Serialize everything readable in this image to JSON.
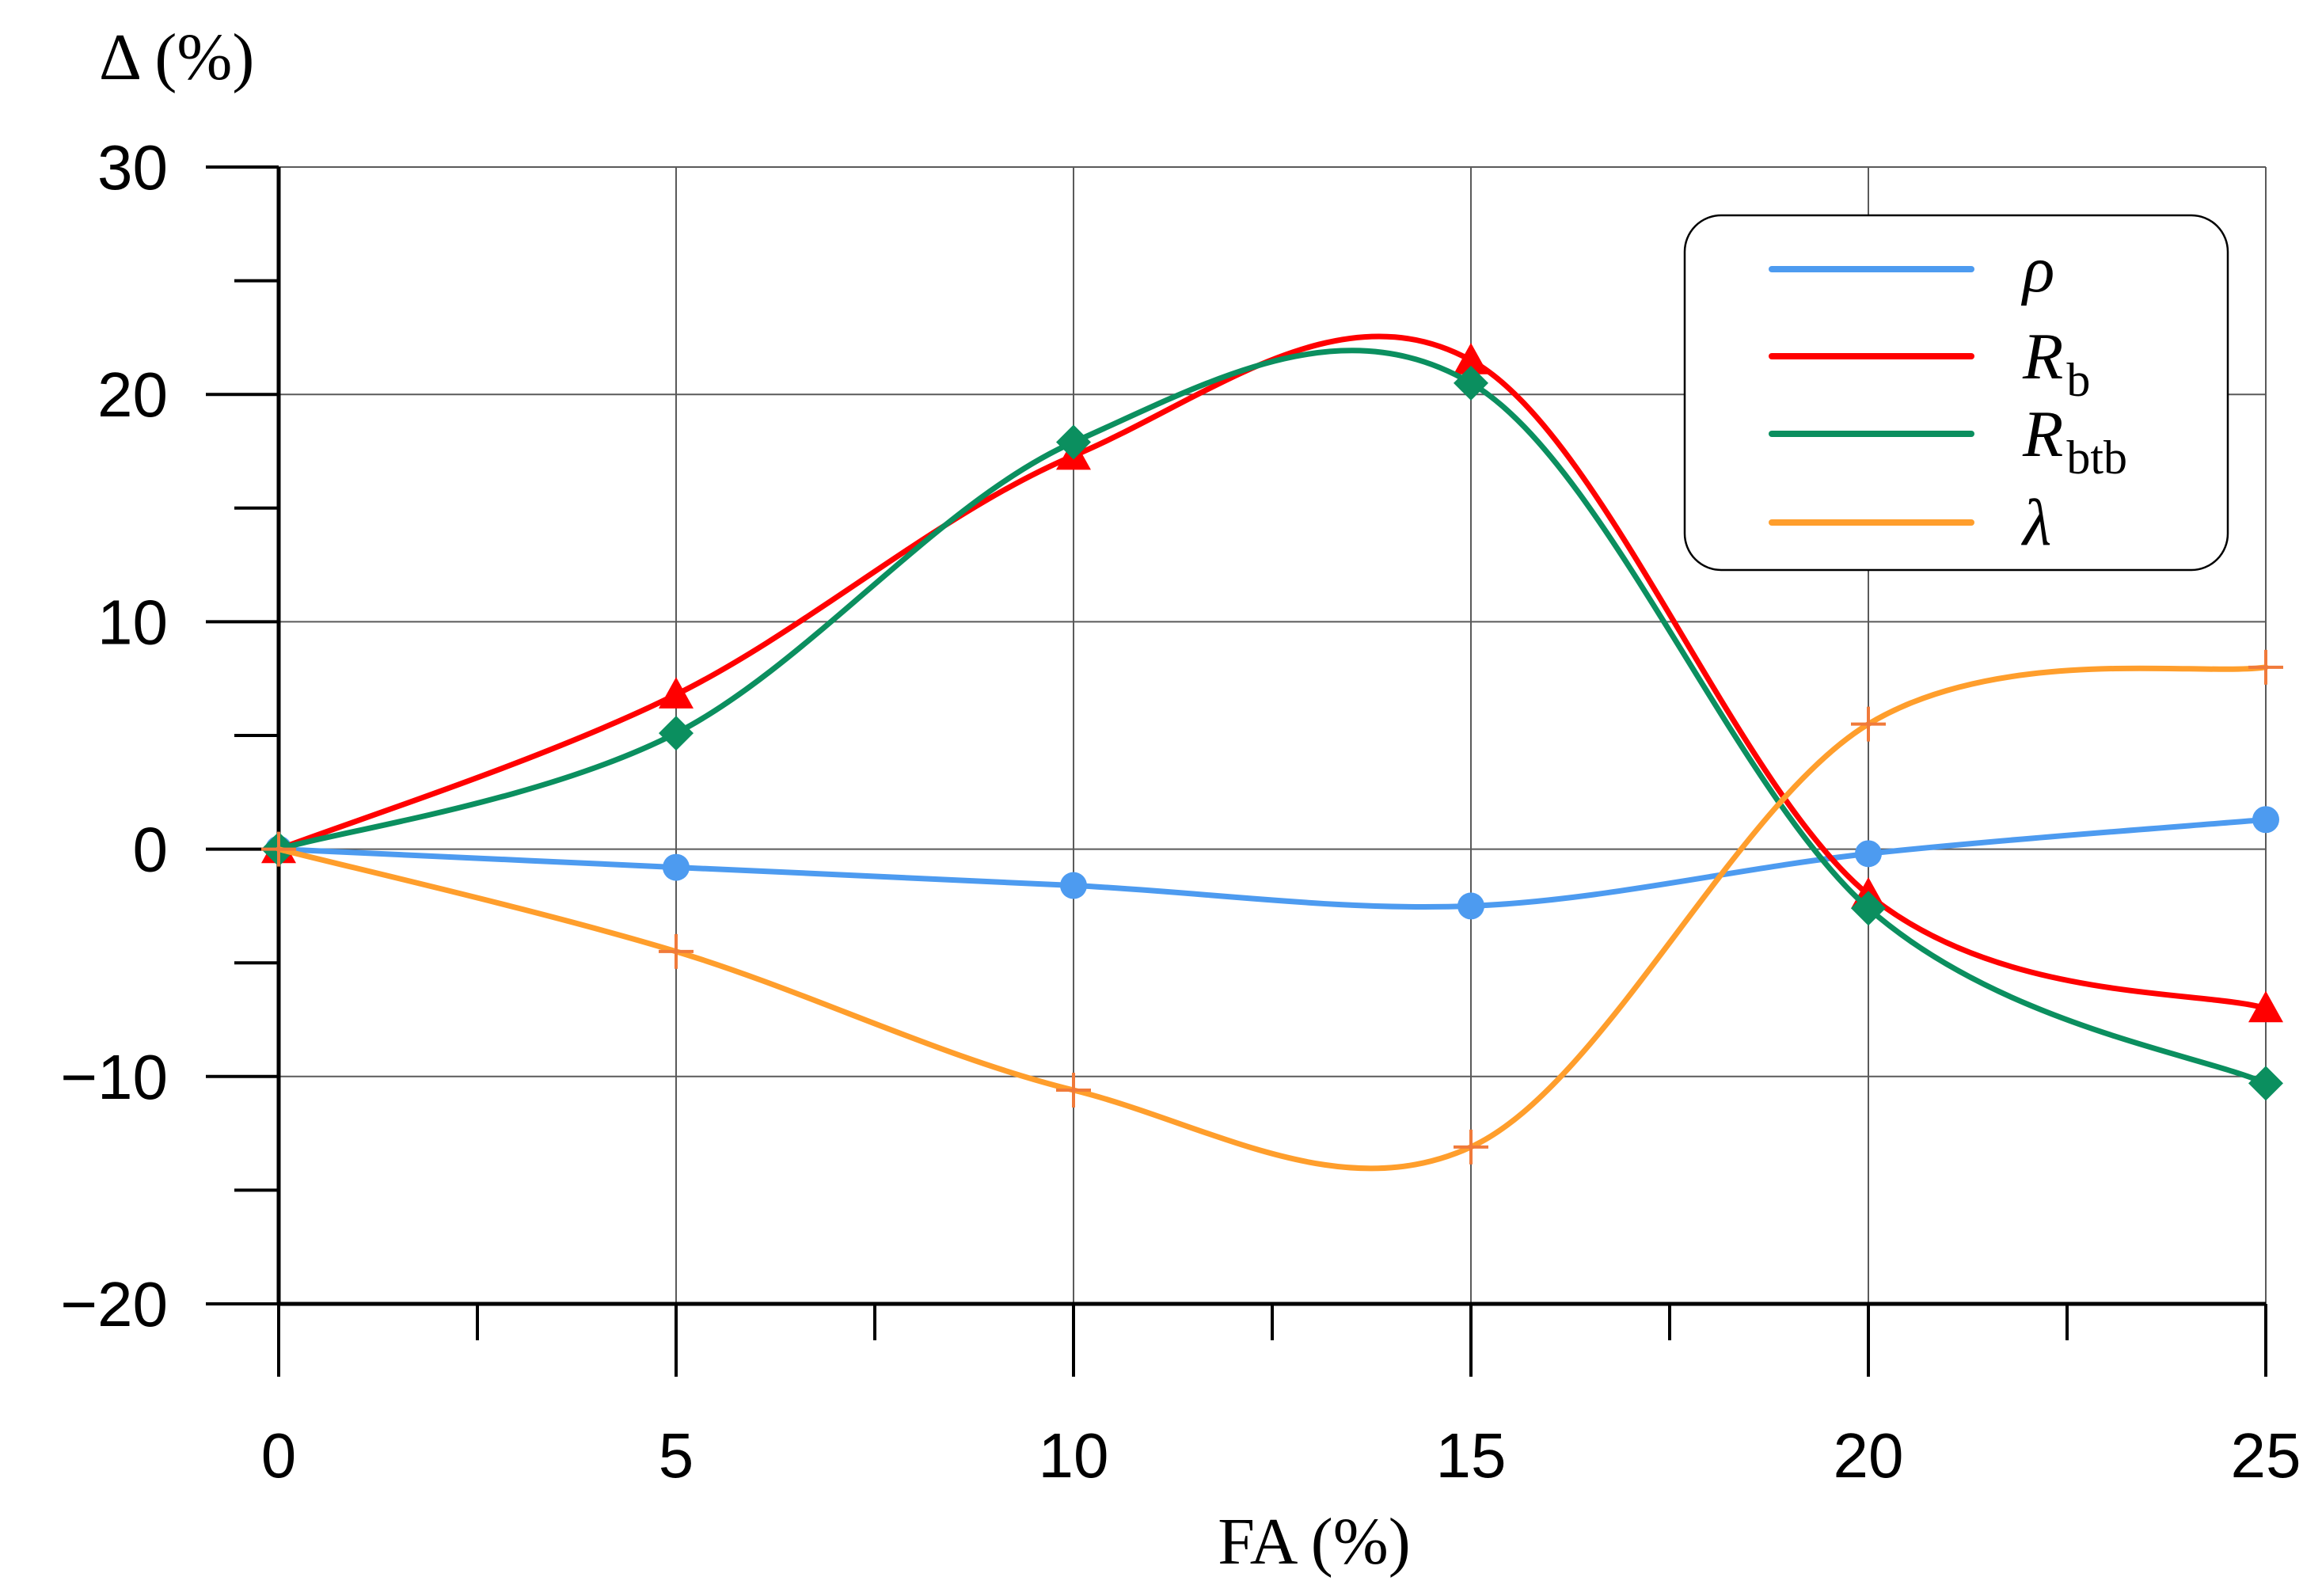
{
  "chart_data": {
    "type": "line",
    "title": "",
    "xlabel": "FA (%)",
    "ylabel": "Δ (%)",
    "x": [
      0,
      5,
      10,
      15,
      20,
      25
    ],
    "xlim": [
      0,
      25
    ],
    "ylim": [
      -20,
      30
    ],
    "xticks": [
      "0",
      "5",
      "10",
      "15",
      "20",
      "25"
    ],
    "yticks": [
      "30",
      "20",
      "10",
      "0",
      "−10",
      "−20"
    ],
    "grid": true,
    "legend_position": "top-right",
    "series": [
      {
        "name": "ρ",
        "sub": "",
        "color": "#4d9bf0",
        "marker": "circle",
        "values": [
          0,
          -0.8,
          -1.6,
          -2.5,
          -0.2,
          1.3
        ]
      },
      {
        "name": "R",
        "sub": "b",
        "color": "#ff0000",
        "marker": "triangle",
        "values": [
          0,
          6.8,
          17.3,
          21.5,
          -2.0,
          -7.0
        ]
      },
      {
        "name": "R",
        "sub": "btb",
        "color": "#0b8f5f",
        "marker": "diamond",
        "values": [
          0,
          5.1,
          17.9,
          20.5,
          -2.6,
          -10.3
        ]
      },
      {
        "name": "λ",
        "sub": "",
        "color": "#ff9e2c",
        "marker": "plus",
        "values": [
          0,
          -4.5,
          -10.6,
          -13.1,
          5.5,
          8.0
        ]
      }
    ]
  }
}
